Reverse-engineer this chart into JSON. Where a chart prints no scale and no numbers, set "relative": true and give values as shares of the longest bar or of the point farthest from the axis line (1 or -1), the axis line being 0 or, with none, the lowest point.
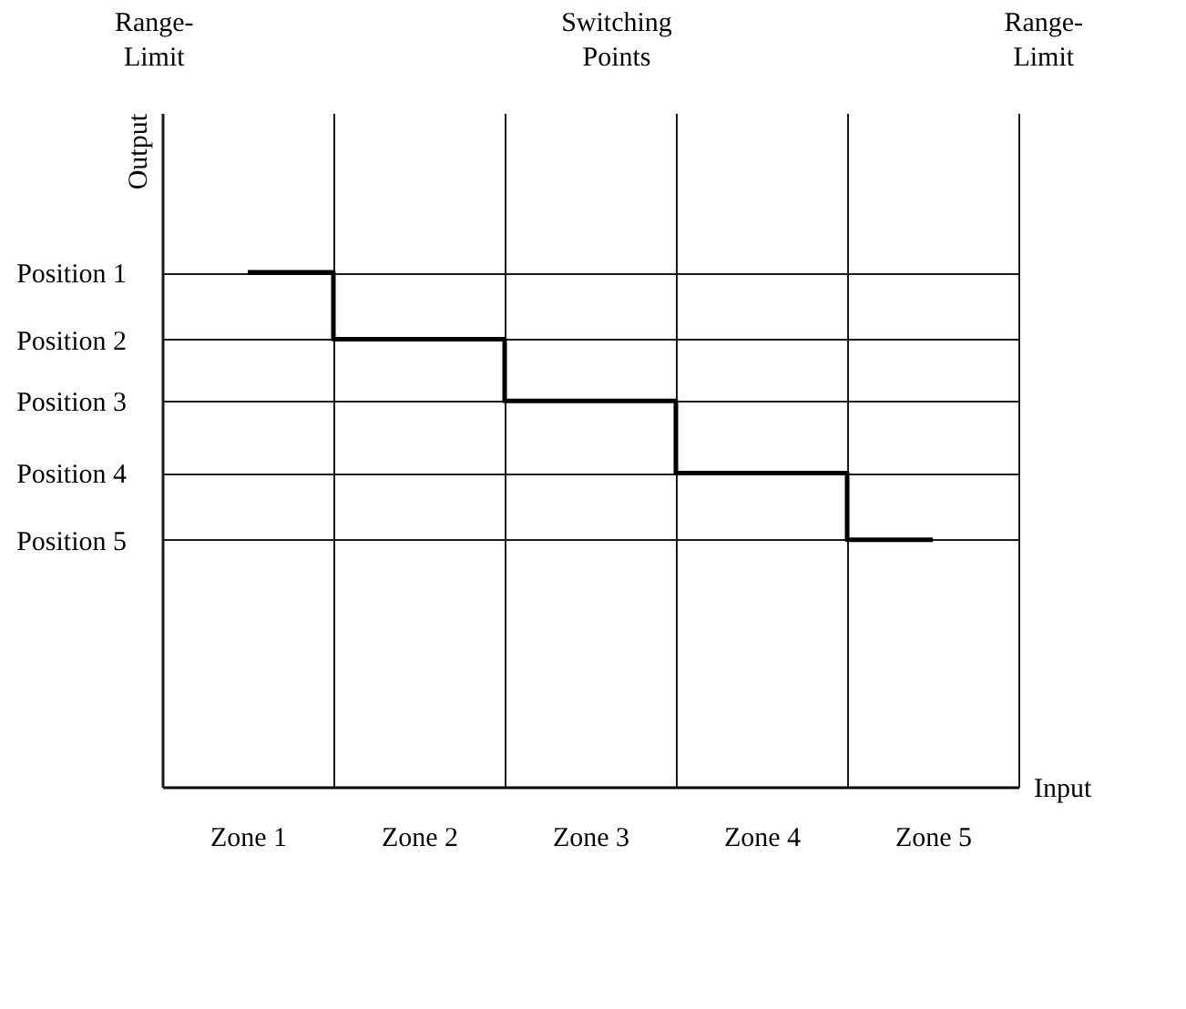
{
  "chart_data": {
    "type": "step",
    "xlabel": "Input",
    "ylabel": "Output",
    "relative": true,
    "categories": [
      "Zone 1",
      "Zone 2",
      "Zone 3",
      "Zone 4",
      "Zone 5"
    ],
    "values": [
      1,
      0.87,
      0.75,
      0.61,
      0.48
    ],
    "color": "#000000",
    "grid": true,
    "marker": "none",
    "line_style": "solid",
    "annotations": [
      "Range-\nLimit",
      "Switching\nPoints",
      "Range-\nLimit",
      "Position 1",
      "Position 2",
      "Position 3",
      "Position 4",
      "Position 5"
    ]
  }
}
